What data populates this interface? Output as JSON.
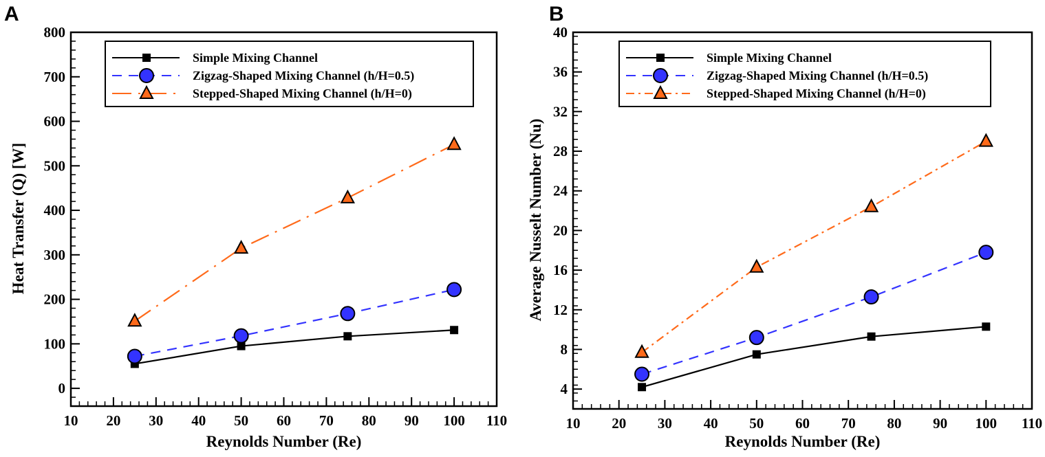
{
  "chart_data": [
    {
      "panel": "A",
      "type": "line",
      "xlabel": "Reynolds Number (Re)",
      "ylabel": "Heat Transfer (Q) [W]",
      "xlim": [
        10,
        110
      ],
      "ylim": [
        -40,
        800
      ],
      "xticks": [
        10,
        20,
        30,
        40,
        50,
        60,
        70,
        80,
        90,
        100,
        110
      ],
      "yticks": [
        0,
        100,
        200,
        300,
        400,
        500,
        600,
        700,
        800
      ],
      "grid": false,
      "legend_placement": "top-left",
      "x": [
        25,
        50,
        75,
        100
      ],
      "series": [
        {
          "name": "Simple Mixing Channel",
          "values": [
            55,
            95,
            117,
            131
          ],
          "color": "#000000",
          "marker": "square",
          "dash": "solid"
        },
        {
          "name": "Zigzag-Shaped Mixing Channel (h/H=0.5)",
          "values": [
            72,
            118,
            168,
            222
          ],
          "color": "#3333ff",
          "marker": "circle",
          "dash": "dashed"
        },
        {
          "name": "Stepped-Shaped Mixing Channel (h/H=0)",
          "values": [
            151,
            315,
            428,
            548
          ],
          "color": "#ff6a1a",
          "marker": "triangle",
          "dash": "long-dash-dot"
        }
      ]
    },
    {
      "panel": "B",
      "type": "line",
      "xlabel": "Reynolds Number (Re)",
      "ylabel": "Average Nusselt Number (Nu)",
      "xlim": [
        10,
        110
      ],
      "ylim": [
        2,
        40
      ],
      "xticks": [
        10,
        20,
        30,
        40,
        50,
        60,
        70,
        80,
        90,
        100,
        110
      ],
      "yticks": [
        4,
        8,
        12,
        16,
        20,
        24,
        28,
        32,
        36,
        40
      ],
      "grid": false,
      "legend_placement": "top-left",
      "x": [
        25,
        50,
        75,
        100
      ],
      "series": [
        {
          "name": "Simple Mixing Channel",
          "values": [
            4.2,
            7.5,
            9.3,
            10.3
          ],
          "color": "#000000",
          "marker": "square",
          "dash": "solid"
        },
        {
          "name": "Zigzag-Shaped Mixing Channel (h/H=0.5)",
          "values": [
            5.5,
            9.2,
            13.3,
            17.8
          ],
          "color": "#3333ff",
          "marker": "circle",
          "dash": "dashed"
        },
        {
          "name": "Stepped-Shaped Mixing Channel (h/H=0)",
          "values": [
            7.7,
            16.3,
            22.4,
            29.0
          ],
          "color": "#ff6a1a",
          "marker": "triangle",
          "dash": "dash-dot"
        }
      ]
    }
  ]
}
